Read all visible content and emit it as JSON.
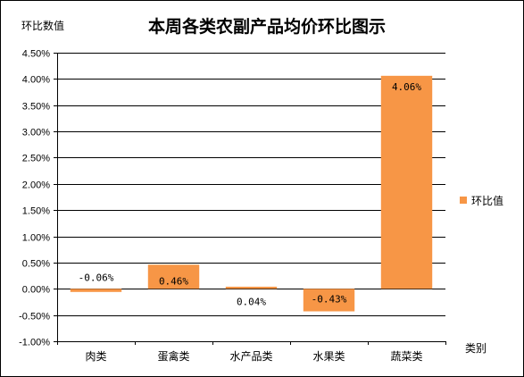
{
  "chart_data": {
    "type": "bar",
    "title": "本周各类农副产品均价环比图示",
    "ylabel": "环比数值",
    "xlabel": "类别",
    "categories": [
      "肉类",
      "蛋禽类",
      "水产品类",
      "水果类",
      "蔬菜类"
    ],
    "series": [
      {
        "name": "环比值",
        "values": [
          -0.06,
          0.46,
          0.04,
          -0.43,
          4.06
        ],
        "labels": [
          "-0.06%",
          "0.46%",
          "0.04%",
          "-0.43%",
          "4.06%"
        ]
      }
    ],
    "ylim": [
      -1.0,
      4.5
    ],
    "yticks": [
      -1.0,
      -0.5,
      0.0,
      0.5,
      1.0,
      1.5,
      2.0,
      2.5,
      3.0,
      3.5,
      4.0,
      4.5
    ],
    "ytick_labels": [
      "-1.00%",
      "-0.50%",
      "0.00%",
      "0.50%",
      "1.00%",
      "1.50%",
      "2.00%",
      "2.50%",
      "3.00%",
      "3.50%",
      "4.00%",
      "4.50%"
    ],
    "grid": true,
    "legend": "right",
    "bar_color": "#F79646"
  }
}
